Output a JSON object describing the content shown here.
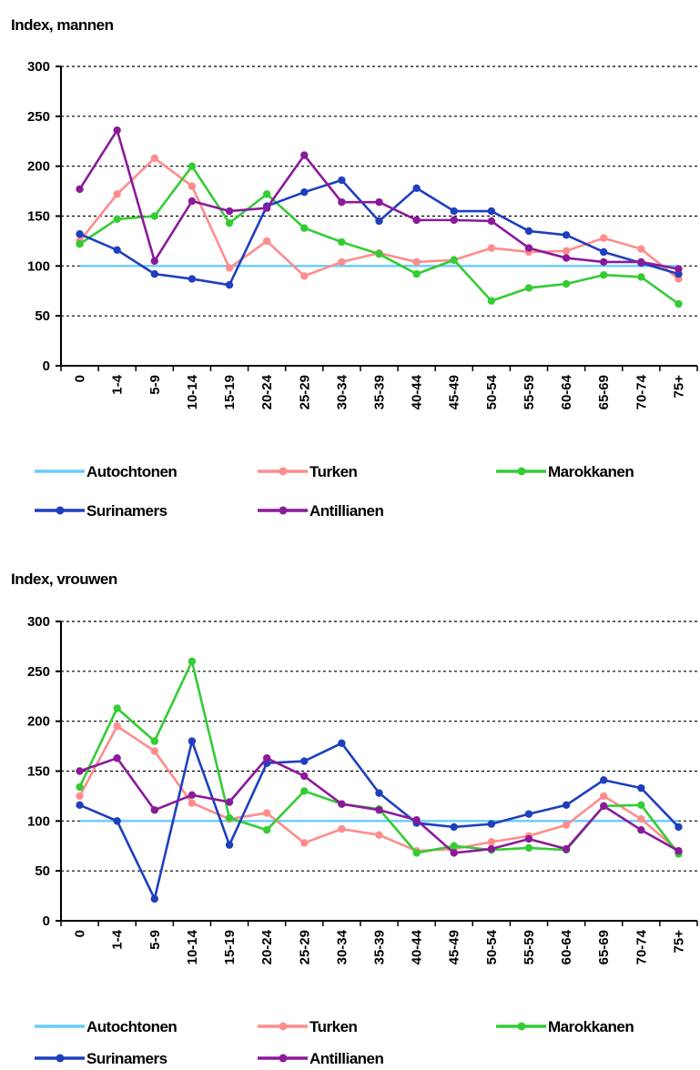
{
  "colors": {
    "Autochtonen": "#66ccff",
    "Turken": "#ff8c8c",
    "Marokkanen": "#33cc33",
    "Surinamers": "#1f3fbf",
    "Antillianen": "#8b1a9a"
  },
  "chart_data": [
    {
      "type": "line",
      "title": "Index, mannen",
      "categories": [
        "0",
        "1-4",
        "5-9",
        "10-14",
        "15-19",
        "20-24",
        "25-29",
        "30-34",
        "35-39",
        "40-44",
        "45-49",
        "50-54",
        "55-59",
        "60-64",
        "65-69",
        "70-74",
        "75+"
      ],
      "ylim": [
        0,
        300
      ],
      "yticks": [
        0,
        50,
        100,
        150,
        200,
        250,
        300
      ],
      "ytick_labels": [
        "0",
        "50",
        "100",
        "150",
        "200",
        "250",
        "300"
      ],
      "grid": true,
      "legend_position": "bottom",
      "series": [
        {
          "name": "Autochtonen",
          "values": [
            100,
            100,
            100,
            100,
            100,
            100,
            100,
            100,
            100,
            100,
            100,
            100,
            100,
            100,
            100,
            100,
            100
          ],
          "markers": false
        },
        {
          "name": "Turken",
          "values": [
            125,
            172,
            208,
            180,
            98,
            125,
            90,
            104,
            113,
            104,
            106,
            118,
            114,
            115,
            128,
            117,
            87
          ],
          "markers": true
        },
        {
          "name": "Marokkanen",
          "values": [
            122,
            147,
            150,
            200,
            143,
            172,
            138,
            124,
            112,
            92,
            106,
            65,
            78,
            82,
            91,
            89,
            62
          ],
          "markers": true
        },
        {
          "name": "Surinamers",
          "values": [
            132,
            116,
            92,
            87,
            81,
            160,
            174,
            186,
            145,
            178,
            155,
            155,
            135,
            131,
            114,
            103,
            92
          ],
          "markers": true
        },
        {
          "name": "Antillianen",
          "values": [
            177,
            236,
            105,
            165,
            155,
            158,
            211,
            164,
            164,
            146,
            146,
            145,
            118,
            108,
            104,
            104,
            97
          ],
          "markers": true
        }
      ]
    },
    {
      "type": "line",
      "title": "Index, vrouwen",
      "categories": [
        "0",
        "1-4",
        "5-9",
        "10-14",
        "15-19",
        "20-24",
        "25-29",
        "30-34",
        "35-39",
        "40-44",
        "45-49",
        "50-54",
        "55-59",
        "60-64",
        "65-69",
        "70-74",
        "75+"
      ],
      "ylim": [
        0,
        300
      ],
      "yticks": [
        0,
        50,
        100,
        150,
        200,
        250,
        300
      ],
      "ytick_labels": [
        "0",
        "50",
        "100",
        "150",
        "200",
        "250",
        "300"
      ],
      "grid": true,
      "legend_position": "bottom",
      "series": [
        {
          "name": "Autochtonen",
          "values": [
            100,
            100,
            100,
            100,
            100,
            100,
            100,
            100,
            100,
            100,
            100,
            100,
            100,
            100,
            100,
            100,
            100
          ],
          "markers": false
        },
        {
          "name": "Turken",
          "values": [
            125,
            195,
            170,
            118,
            102,
            108,
            78,
            92,
            86,
            70,
            72,
            79,
            85,
            96,
            125,
            102,
            70
          ],
          "markers": true
        },
        {
          "name": "Marokkanen",
          "values": [
            134,
            213,
            180,
            260,
            103,
            91,
            130,
            117,
            112,
            68,
            75,
            71,
            73,
            71,
            115,
            116,
            67
          ],
          "markers": true
        },
        {
          "name": "Surinamers",
          "values": [
            116,
            100,
            22,
            180,
            76,
            158,
            160,
            178,
            128,
            98,
            94,
            97,
            107,
            116,
            141,
            133,
            94
          ],
          "markers": true
        },
        {
          "name": "Antillianen",
          "values": [
            150,
            163,
            111,
            126,
            119,
            163,
            145,
            117,
            111,
            101,
            68,
            72,
            82,
            72,
            115,
            91,
            70
          ],
          "markers": true
        }
      ]
    }
  ]
}
